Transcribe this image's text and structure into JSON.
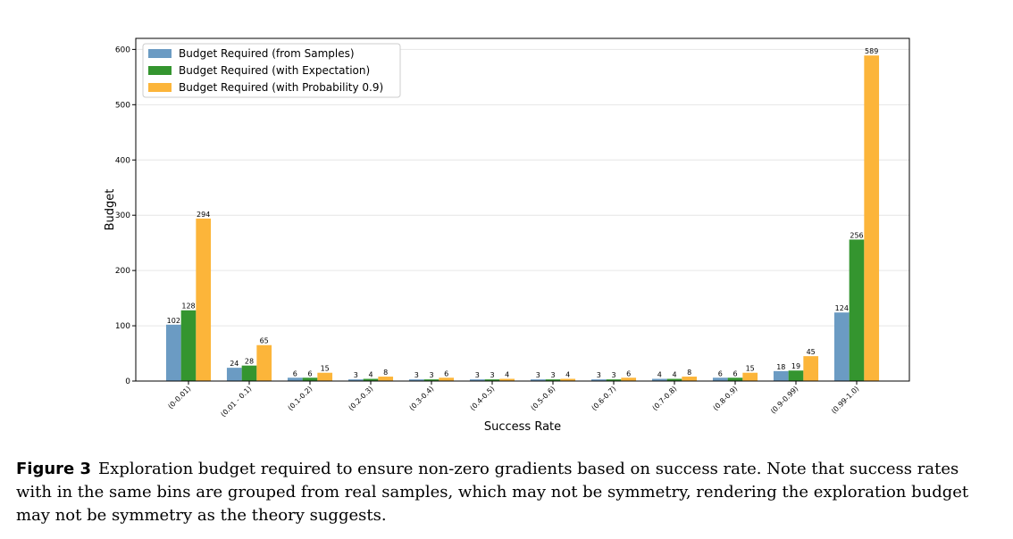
{
  "chart_data": {
    "type": "bar",
    "xlabel": "Success Rate",
    "ylabel": "Budget",
    "ylim": [
      0,
      620
    ],
    "yticks": [
      0,
      100,
      200,
      300,
      400,
      500,
      600
    ],
    "grid": true,
    "legend_position": "top-left",
    "categories": [
      "(0-0.01)",
      "(0.01 - 0.1)",
      "(0.1-0.2)",
      "(0.2-0.3)",
      "(0.3-0.4)",
      "(0.4-0.5)",
      "(0.5-0.6)",
      "(0.6-0.7)",
      "(0.7-0.8)",
      "(0.8-0.9)",
      "(0.9-0.99)",
      "(0.99-1.0)"
    ],
    "series": [
      {
        "name": "Budget Required (from Samples)",
        "color": "#6b9bc3",
        "values": [
          102,
          24,
          6,
          3,
          3,
          3,
          3,
          3,
          4,
          6,
          18,
          124
        ]
      },
      {
        "name": "Budget Required (with Expectation)",
        "color": "#34952f",
        "values": [
          128,
          28,
          6,
          4,
          3,
          3,
          3,
          3,
          4,
          6,
          19,
          256
        ]
      },
      {
        "name": "Budget Required (with Probability 0.9)",
        "color": "#fcb53a",
        "values": [
          294,
          65,
          15,
          8,
          6,
          4,
          4,
          6,
          8,
          15,
          45,
          589
        ]
      }
    ]
  },
  "caption": {
    "label": "Figure 3",
    "text": "Exploration budget required to ensure non-zero gradients based on success rate. Note that success rates with in the same bins are grouped from real samples, which may not be symmetry, rendering the exploration budget may not be symmetry as the theory suggests."
  }
}
